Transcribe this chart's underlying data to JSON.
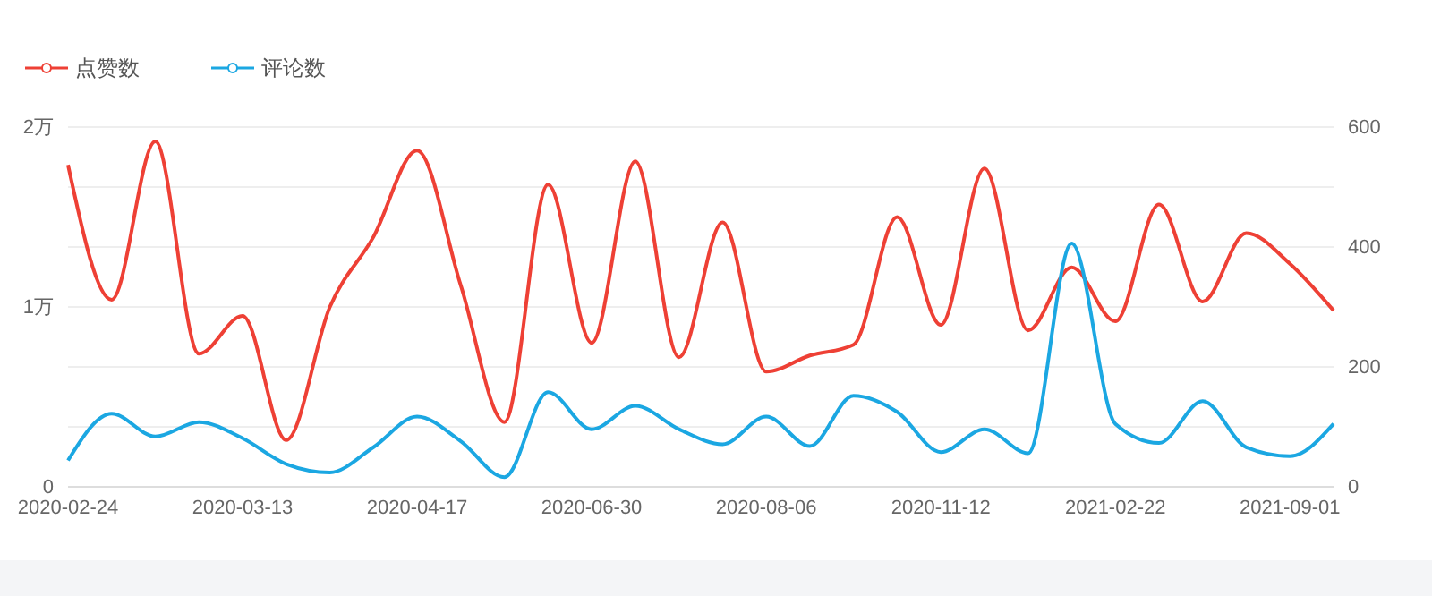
{
  "chart_data": {
    "type": "line",
    "categories": [
      "2020-02-24",
      null,
      null,
      null,
      "2020-03-13",
      null,
      null,
      null,
      "2020-04-17",
      null,
      null,
      null,
      "2020-06-30",
      null,
      null,
      null,
      "2020-08-06",
      null,
      null,
      null,
      "2020-11-12",
      null,
      null,
      null,
      "2021-02-22",
      null,
      null,
      null,
      "2021-09-01",
      null
    ],
    "series": [
      {
        "name": "点赞数",
        "color": "#ee4035",
        "values": [
          1.79,
          1.04,
          1.92,
          0.74,
          0.95,
          0.26,
          1.0,
          1.39,
          1.87,
          1.12,
          0.36,
          1.68,
          0.8,
          1.81,
          0.72,
          1.47,
          0.64,
          0.73,
          0.79,
          1.5,
          0.9,
          1.77,
          0.87,
          1.22,
          0.92,
          1.57,
          1.03,
          1.41,
          1.24,
          0.98
        ]
      },
      {
        "name": "评论数",
        "color": "#1ba7e2",
        "axis": "y2",
        "values": [
          44,
          122,
          84,
          108,
          81,
          38,
          24,
          66,
          117,
          76,
          16,
          158,
          96,
          135,
          96,
          71,
          117,
          68,
          152,
          125,
          58,
          96,
          56,
          406,
          105,
          73,
          143,
          66,
          51,
          105
        ]
      }
    ],
    "ylim": [
      0,
      2
    ],
    "yticks": [
      0,
      {
        "value": 1,
        "label": "1万"
      },
      {
        "value": 2,
        "label": "2万"
      }
    ],
    "y2lim": [
      0,
      600
    ],
    "y2ticks": [
      0,
      {
        "value": 100,
        "label": null
      },
      200,
      {
        "value": 300,
        "label": null
      },
      400,
      {
        "value": 500,
        "label": null
      },
      600
    ],
    "grid": true,
    "legend": "top left",
    "marker": "none",
    "line_style": "solid"
  }
}
